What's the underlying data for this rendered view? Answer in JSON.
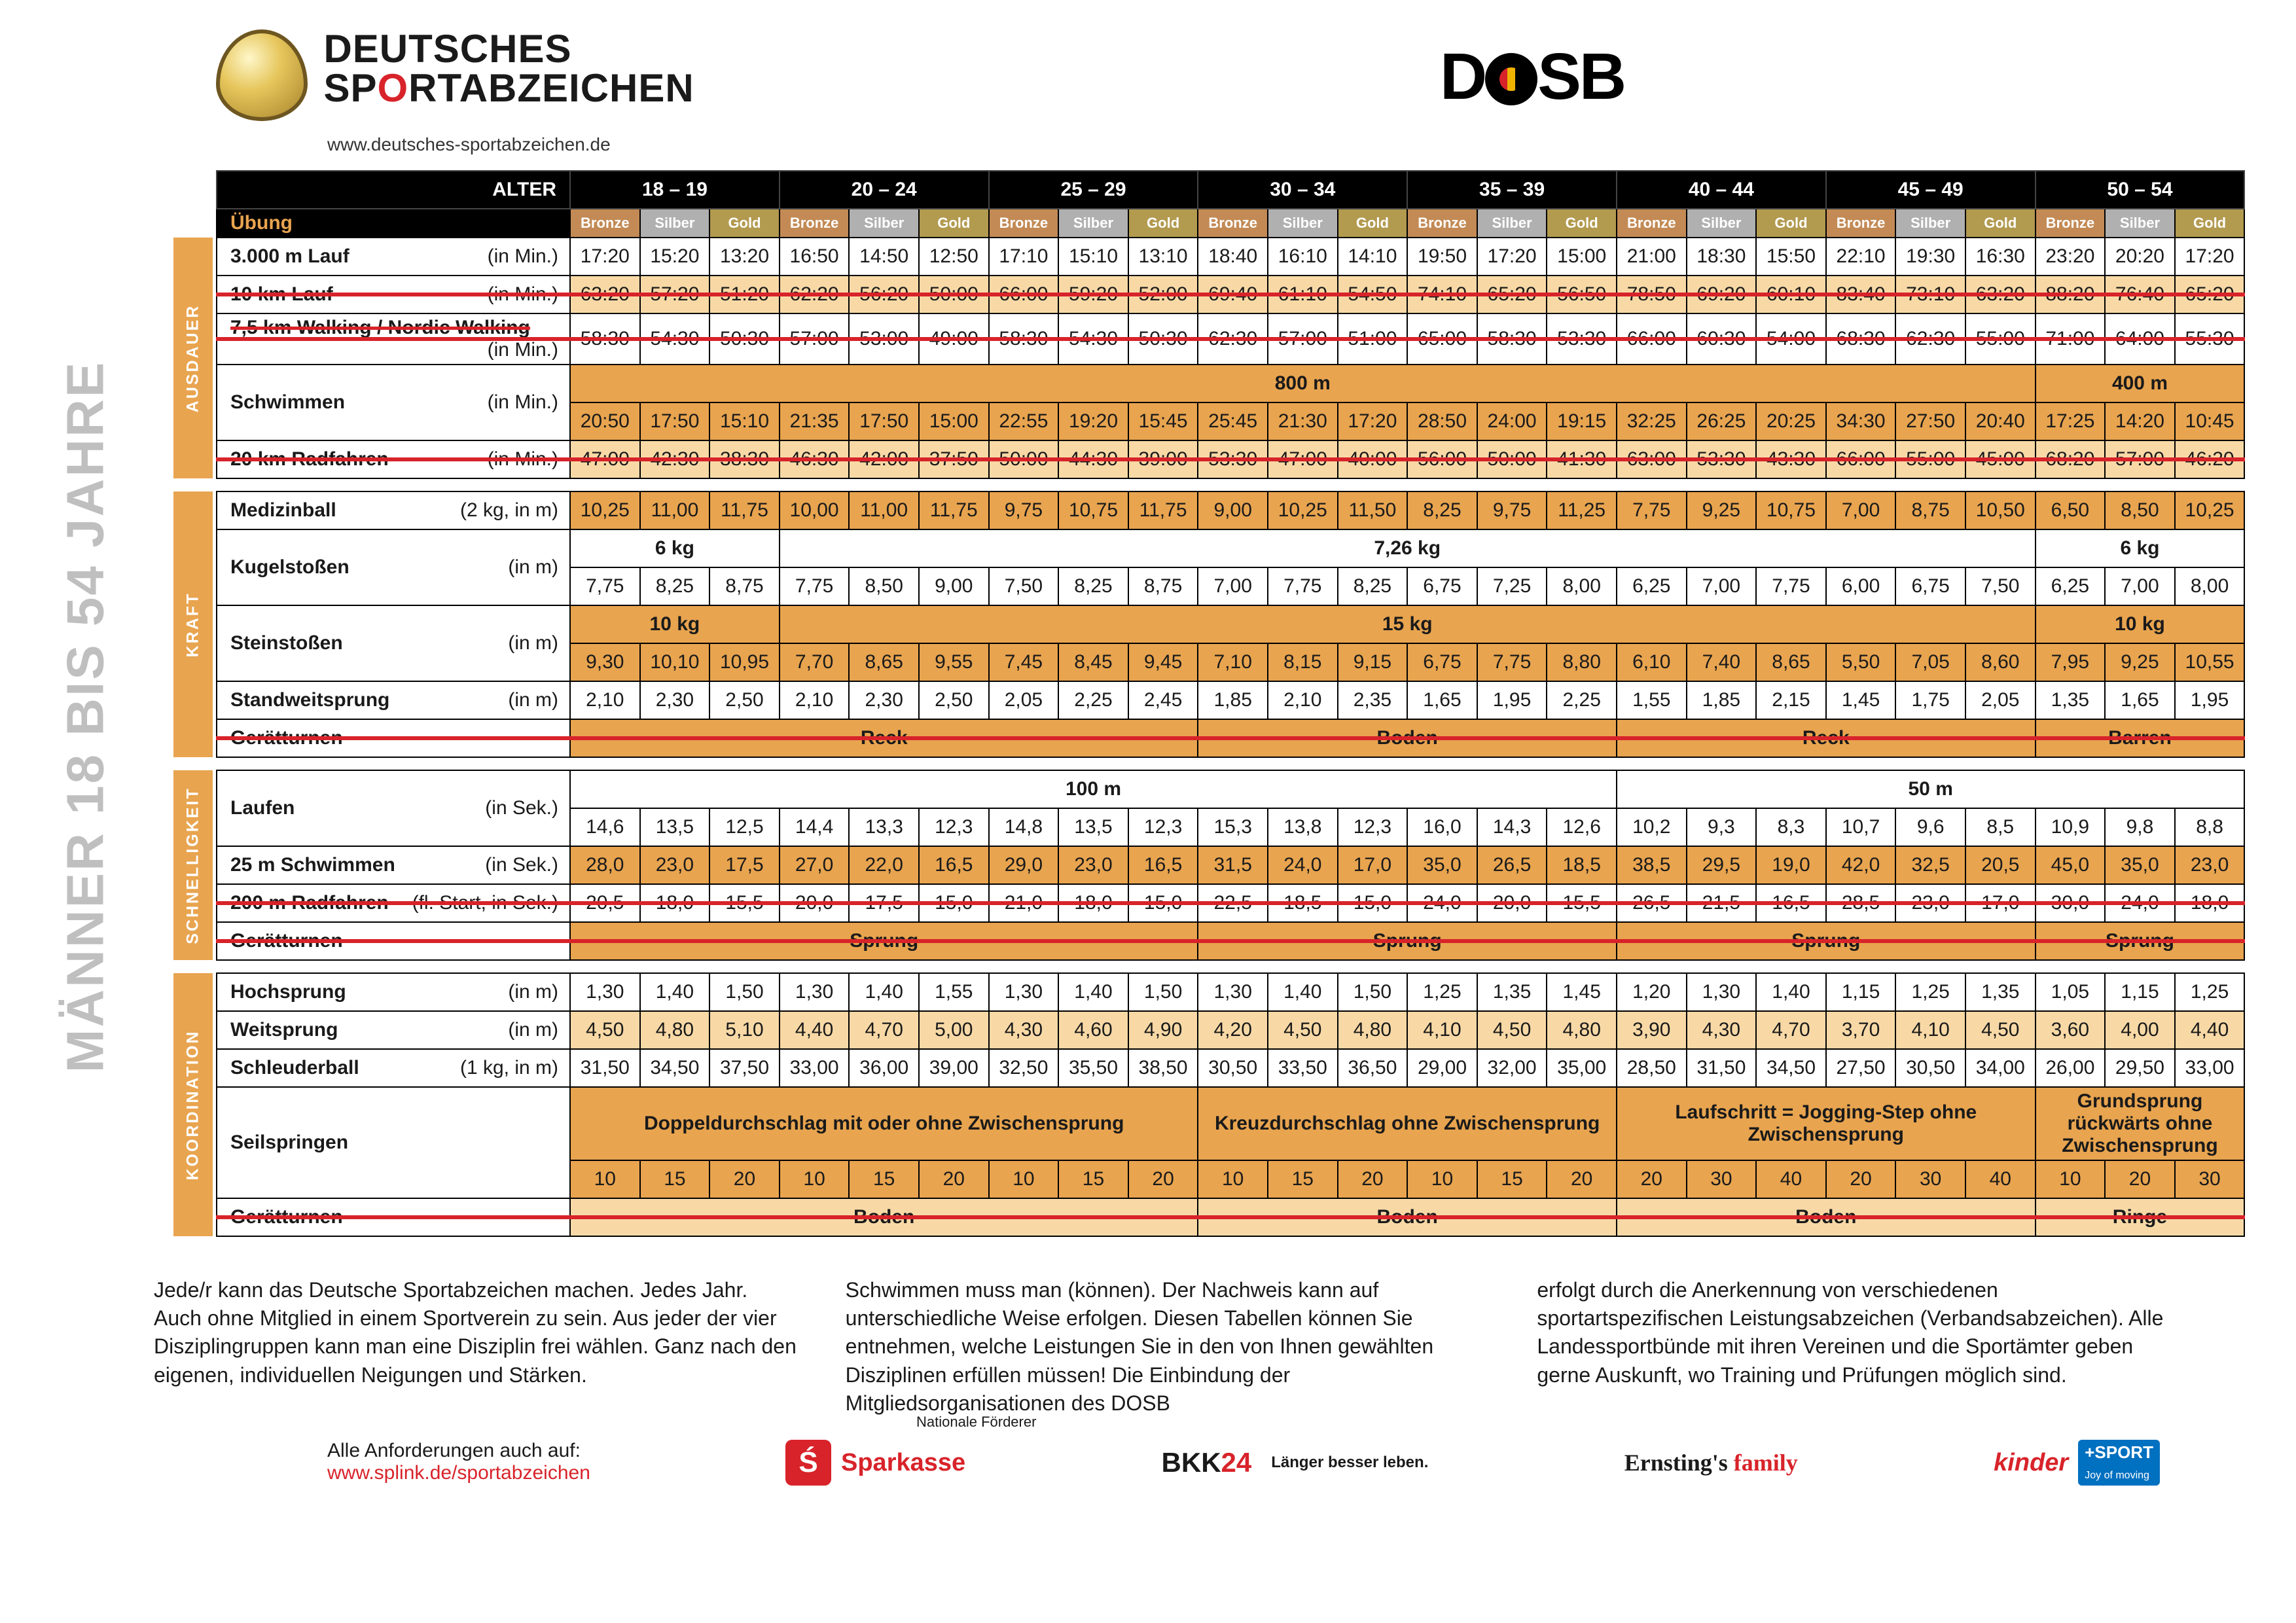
{
  "meta": {
    "title_line1": "DEUTSCHES",
    "title_line2": "SPORTABZEICHEN",
    "url": "www.deutsches-sportabzeichen.de",
    "dosb": "DOSB",
    "vlabel": "MÄNNER 18 BIS 54 JAHRE",
    "colors": {
      "bronze": "#c38a55",
      "silber": "#b0b0b0",
      "gold": "#b29a4f",
      "bg_light": "#f8d9a6",
      "bg_dark": "#e8a44f",
      "strike": "#d8232a",
      "header_bg": "#000000",
      "accent": "#e8a44f"
    }
  },
  "headers": {
    "age_label": "ALTER",
    "ubung": "Übung",
    "medals": [
      "Bronze",
      "Silber",
      "Gold"
    ],
    "ages": [
      "18 – 19",
      "20 – 24",
      "25 – 29",
      "30 – 34",
      "35 – 39",
      "40 – 44",
      "45 – 49",
      "50 – 54"
    ]
  },
  "groups": [
    {
      "name": "AUSDAUER",
      "color": "#e8a44f",
      "rows": [
        {
          "name": "3.000 m Lauf",
          "unit": "(in Min.)",
          "bg": "white",
          "struck": false,
          "cells": [
            "17:20",
            "15:20",
            "13:20",
            "16:50",
            "14:50",
            "12:50",
            "17:10",
            "15:10",
            "13:10",
            "18:40",
            "16:10",
            "14:10",
            "19:50",
            "17:20",
            "15:00",
            "21:00",
            "18:30",
            "15:50",
            "22:10",
            "19:30",
            "16:30",
            "23:20",
            "20:20",
            "17:20"
          ]
        },
        {
          "name": "10 km Lauf",
          "unit": "(in Min.)",
          "bg": "light",
          "struck": true,
          "cells": [
            "63:20",
            "57:20",
            "51:20",
            "62:20",
            "56:20",
            "50:00",
            "66:00",
            "59:20",
            "52:00",
            "69:40",
            "61:10",
            "54:50",
            "74:10",
            "65:20",
            "56:50",
            "78:50",
            "69:20",
            "60:10",
            "83:40",
            "73:10",
            "63:20",
            "88:20",
            "76:40",
            "65:20"
          ]
        },
        {
          "name": "7,5 km Walking / Nordic Walking",
          "unit": "(in Min.)",
          "bg": "white",
          "struck": true,
          "cells": [
            "58:30",
            "54:30",
            "50:30",
            "57:00",
            "53:00",
            "49:00",
            "58:30",
            "54:30",
            "50:30",
            "62:30",
            "57:00",
            "51:00",
            "65:00",
            "58:30",
            "53:30",
            "66:00",
            "60:30",
            "54:00",
            "68:30",
            "62:30",
            "55:00",
            "71:00",
            "64:00",
            "55:30"
          ]
        },
        {
          "name": "Schwimmen",
          "unit": "(in Min.)",
          "bg": "dark",
          "struck": false,
          "span": [
            {
              "text": "800 m",
              "cols": 21
            },
            {
              "text": "400 m",
              "cols": 3
            }
          ],
          "cells": [
            "20:50",
            "17:50",
            "15:10",
            "21:35",
            "17:50",
            "15:00",
            "22:55",
            "19:20",
            "15:45",
            "25:45",
            "21:30",
            "17:20",
            "28:50",
            "24:00",
            "19:15",
            "32:25",
            "26:25",
            "20:25",
            "34:30",
            "27:50",
            "20:40",
            "17:25",
            "14:20",
            "10:45"
          ]
        },
        {
          "name": "20 km Radfahren",
          "unit": "(in Min.)",
          "bg": "light",
          "struck": true,
          "cells": [
            "47:00",
            "42:30",
            "38:30",
            "46:30",
            "42:00",
            "37:50",
            "50:00",
            "44:30",
            "39:00",
            "53:30",
            "47:00",
            "40:00",
            "56:00",
            "50:00",
            "41:30",
            "63:00",
            "53:30",
            "43:30",
            "66:00",
            "55:00",
            "45:00",
            "68:20",
            "57:00",
            "46:20"
          ]
        }
      ]
    },
    {
      "name": "KRAFT",
      "color": "#e8a44f",
      "rows": [
        {
          "name": "Medizinball",
          "unit": "(2 kg, in m)",
          "bg": "dark",
          "struck": false,
          "cells": [
            "10,25",
            "11,00",
            "11,75",
            "10,00",
            "11,00",
            "11,75",
            "9,75",
            "10,75",
            "11,75",
            "9,00",
            "10,25",
            "11,50",
            "8,25",
            "9,75",
            "11,25",
            "7,75",
            "9,25",
            "10,75",
            "7,00",
            "8,75",
            "10,50",
            "6,50",
            "8,50",
            "10,25"
          ]
        },
        {
          "name": "Kugelstoßen",
          "unit": "(in m)",
          "bg": "white",
          "struck": false,
          "span": [
            {
              "text": "6 kg",
              "cols": 3
            },
            {
              "text": "7,26 kg",
              "cols": 18
            },
            {
              "text": "6 kg",
              "cols": 3
            }
          ],
          "cells": [
            "7,75",
            "8,25",
            "8,75",
            "7,75",
            "8,50",
            "9,00",
            "7,50",
            "8,25",
            "8,75",
            "7,00",
            "7,75",
            "8,25",
            "6,75",
            "7,25",
            "8,00",
            "6,25",
            "7,00",
            "7,75",
            "6,00",
            "6,75",
            "7,50",
            "6,25",
            "7,00",
            "8,00"
          ]
        },
        {
          "name": "Steinstoßen",
          "unit": "(in m)",
          "bg": "dark",
          "struck": false,
          "span": [
            {
              "text": "10 kg",
              "cols": 3
            },
            {
              "text": "15 kg",
              "cols": 18
            },
            {
              "text": "10 kg",
              "cols": 3
            }
          ],
          "cells": [
            "9,30",
            "10,10",
            "10,95",
            "7,70",
            "8,65",
            "9,55",
            "7,45",
            "8,45",
            "9,45",
            "7,10",
            "8,15",
            "9,15",
            "6,75",
            "7,75",
            "8,80",
            "6,10",
            "7,40",
            "8,65",
            "5,50",
            "7,05",
            "8,60",
            "7,95",
            "9,25",
            "10,55"
          ]
        },
        {
          "name": "Standweitsprung",
          "unit": "(in m)",
          "bg": "white",
          "struck": false,
          "cells": [
            "2,10",
            "2,30",
            "2,50",
            "2,10",
            "2,30",
            "2,50",
            "2,05",
            "2,25",
            "2,45",
            "1,85",
            "2,10",
            "2,35",
            "1,65",
            "1,95",
            "2,25",
            "1,55",
            "1,85",
            "2,15",
            "1,45",
            "1,75",
            "2,05",
            "1,35",
            "1,65",
            "1,95"
          ]
        },
        {
          "name": "Gerätturnen",
          "unit": "",
          "bg": "dark",
          "struck": true,
          "span": [
            {
              "text": "Reck",
              "cols": 9
            },
            {
              "text": "Boden",
              "cols": 6
            },
            {
              "text": "Reck",
              "cols": 6
            },
            {
              "text": "Barren",
              "cols": 3
            }
          ],
          "cells": null
        }
      ]
    },
    {
      "name": "SCHNELLIGKEIT",
      "color": "#e8a44f",
      "rows": [
        {
          "name": "Laufen",
          "unit": "(in Sek.)",
          "bg": "white",
          "struck": false,
          "span": [
            {
              "text": "100 m",
              "cols": 15
            },
            {
              "text": "50 m",
              "cols": 9
            }
          ],
          "cells": [
            "14,6",
            "13,5",
            "12,5",
            "14,4",
            "13,3",
            "12,3",
            "14,8",
            "13,5",
            "12,3",
            "15,3",
            "13,8",
            "12,3",
            "16,0",
            "14,3",
            "12,6",
            "10,2",
            "9,3",
            "8,3",
            "10,7",
            "9,6",
            "8,5",
            "10,9",
            "9,8",
            "8,8"
          ]
        },
        {
          "name": "25 m Schwimmen",
          "unit": "(in Sek.)",
          "bg": "dark",
          "struck": false,
          "cells": [
            "28,0",
            "23,0",
            "17,5",
            "27,0",
            "22,0",
            "16,5",
            "29,0",
            "23,0",
            "16,5",
            "31,5",
            "24,0",
            "17,0",
            "35,0",
            "26,5",
            "18,5",
            "38,5",
            "29,5",
            "19,0",
            "42,0",
            "32,5",
            "20,5",
            "45,0",
            "35,0",
            "23,0"
          ]
        },
        {
          "name": "200 m Radfahren",
          "unit": "(fl. Start, in Sek.)",
          "bg": "white",
          "struck": true,
          "cells": [
            "20,5",
            "18,0",
            "15,5",
            "20,0",
            "17,5",
            "15,0",
            "21,0",
            "18,0",
            "15,0",
            "22,5",
            "18,5",
            "15,0",
            "24,0",
            "20,0",
            "15,5",
            "26,5",
            "21,5",
            "16,5",
            "28,5",
            "23,0",
            "17,0",
            "30,0",
            "24,0",
            "18,0"
          ]
        },
        {
          "name": "Gerätturnen",
          "unit": "",
          "bg": "dark",
          "struck": true,
          "span": [
            {
              "text": "Sprung",
              "cols": 9
            },
            {
              "text": "Sprung",
              "cols": 6
            },
            {
              "text": "Sprung",
              "cols": 6
            },
            {
              "text": "Sprung",
              "cols": 3
            }
          ],
          "cells": null
        }
      ]
    },
    {
      "name": "KOORDINATION",
      "color": "#e8a44f",
      "rows": [
        {
          "name": "Hochsprung",
          "unit": "(in m)",
          "bg": "white",
          "struck": false,
          "cells": [
            "1,30",
            "1,40",
            "1,50",
            "1,30",
            "1,40",
            "1,55",
            "1,30",
            "1,40",
            "1,50",
            "1,30",
            "1,40",
            "1,50",
            "1,25",
            "1,35",
            "1,45",
            "1,20",
            "1,30",
            "1,40",
            "1,15",
            "1,25",
            "1,35",
            "1,05",
            "1,15",
            "1,25"
          ]
        },
        {
          "name": "Weitsprung",
          "unit": "(in m)",
          "bg": "light",
          "struck": false,
          "cells": [
            "4,50",
            "4,80",
            "5,10",
            "4,40",
            "4,70",
            "5,00",
            "4,30",
            "4,60",
            "4,90",
            "4,20",
            "4,50",
            "4,80",
            "4,10",
            "4,50",
            "4,80",
            "3,90",
            "4,30",
            "4,70",
            "3,70",
            "4,10",
            "4,50",
            "3,60",
            "4,00",
            "4,40"
          ]
        },
        {
          "name": "Schleuderball",
          "unit": "(1 kg, in m)",
          "bg": "white",
          "struck": false,
          "cells": [
            "31,50",
            "34,50",
            "37,50",
            "33,00",
            "36,00",
            "39,00",
            "32,50",
            "35,50",
            "38,50",
            "30,50",
            "33,50",
            "36,50",
            "29,00",
            "32,00",
            "35,00",
            "28,50",
            "31,50",
            "34,50",
            "27,50",
            "30,50",
            "34,00",
            "26,00",
            "29,50",
            "33,00"
          ]
        },
        {
          "name": "Seilspringen",
          "unit": "",
          "bg": "dark",
          "struck": false,
          "span": [
            {
              "text": "Doppeldurchschlag mit oder ohne Zwischensprung",
              "cols": 9
            },
            {
              "text": "Kreuzdurchschlag ohne Zwischensprung",
              "cols": 6
            },
            {
              "text": "Laufschritt = Jogging-Step ohne Zwischensprung",
              "cols": 6
            },
            {
              "text": "Grundsprung rückwärts ohne Zwischensprung",
              "cols": 3
            }
          ],
          "cells": [
            "10",
            "15",
            "20",
            "10",
            "15",
            "20",
            "10",
            "15",
            "20",
            "10",
            "15",
            "20",
            "10",
            "15",
            "20",
            "20",
            "30",
            "40",
            "20",
            "30",
            "40",
            "10",
            "20",
            "30"
          ]
        },
        {
          "name": "Gerätturnen",
          "unit": "",
          "bg": "light",
          "struck": true,
          "span": [
            {
              "text": "Boden",
              "cols": 9
            },
            {
              "text": "Boden",
              "cols": 6
            },
            {
              "text": "Boden",
              "cols": 6
            },
            {
              "text": "Ringe",
              "cols": 3
            }
          ],
          "cells": null
        }
      ]
    }
  ],
  "footer": {
    "col1": "Jede/r kann das Deutsche Sportabzeichen machen. Jedes Jahr. Auch ohne Mitglied in einem Sportverein zu sein. Aus jeder der vier Disziplingruppen kann man eine Disziplin frei wählen. Ganz nach den eigenen, individuellen Neigungen und Stärken.",
    "col2": "Schwimmen muss man (können). Der Nachweis kann auf unterschiedliche Weise erfolgen. Diesen Tabellen können Sie entnehmen, welche Leistungen Sie in den von Ihnen gewählten Disziplinen erfüllen müssen! Die Einbindung der Mitgliedsorganisationen des DOSB",
    "col3": "erfolgt durch die Anerkennung von verschiedenen sportartspezifischen Leistungsabzeichen (Verbands­abzeichen). Alle Landessportbünde mit ihren Vereinen und die Sportämter geben gerne Auskunft, wo Training und Prüfungen möglich sind.",
    "sub_label": "Alle Anforderungen auch auf:",
    "sub_link": "www.splink.de/sportabzeichen",
    "forderer": "Nationale Förderer",
    "sponsors": [
      "Sparkasse",
      "BKK24",
      "Ernstings family",
      "kinder +SPORT"
    ]
  }
}
